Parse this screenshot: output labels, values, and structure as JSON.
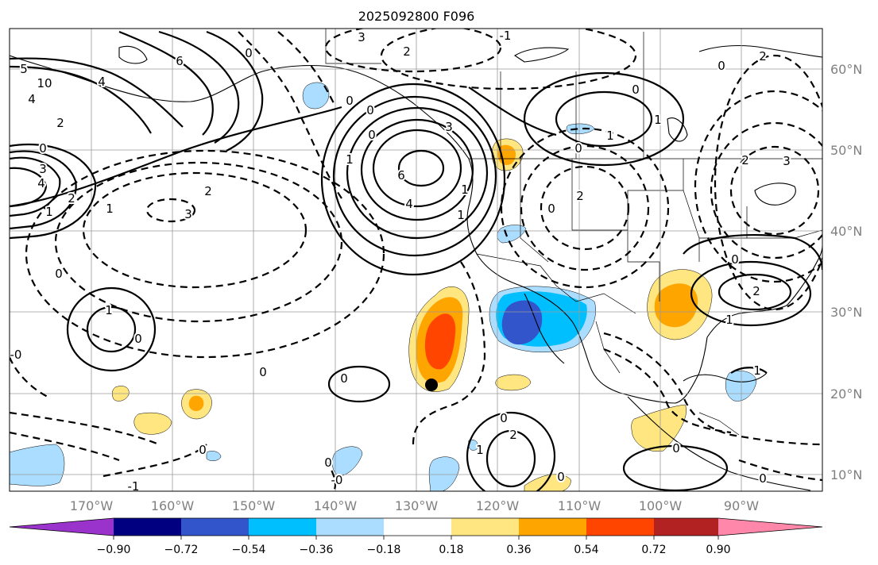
{
  "title": "2025092800 F096",
  "lat_labels": [
    "60°N",
    "50°N",
    "40°N",
    "30°N",
    "20°N",
    "10°N"
  ],
  "lon_labels": [
    "170°W",
    "160°W",
    "150°W",
    "140°W",
    "130°W",
    "120°W",
    "110°W",
    "100°W",
    "90°W"
  ],
  "colorbar": {
    "tick_labels": [
      "−0.90",
      "−0.72",
      "−0.54",
      "−0.36",
      "−0.18",
      "0.18",
      "0.36",
      "0.54",
      "0.72",
      "0.90"
    ],
    "colors": [
      "#9933cc",
      "#000080",
      "#3355cc",
      "#00bfff",
      "#aaddff",
      "#ffffff",
      "#ffe680",
      "#ffa500",
      "#ff4500",
      "#b22222",
      "#ff88aa"
    ]
  },
  "contour_labels": [
    {
      "text": "3"
    },
    {
      "text": "-1"
    },
    {
      "text": "2"
    },
    {
      "text": "6"
    },
    {
      "text": "0"
    },
    {
      "text": "4"
    },
    {
      "text": "5"
    },
    {
      "text": "10"
    },
    {
      "text": "4"
    },
    {
      "text": "2"
    },
    {
      "text": "0"
    },
    {
      "text": "3"
    },
    {
      "text": "4"
    },
    {
      "text": "2"
    },
    {
      "text": "1"
    },
    {
      "text": "3"
    },
    {
      "text": "2"
    },
    {
      "text": "1"
    },
    {
      "text": "0"
    },
    {
      "text": "0"
    },
    {
      "text": "1"
    },
    {
      "text": "3"
    },
    {
      "text": "6"
    },
    {
      "text": "4"
    },
    {
      "text": "1"
    },
    {
      "text": "0"
    },
    {
      "text": "1"
    },
    {
      "text": "2"
    },
    {
      "text": "0"
    },
    {
      "text": "1"
    },
    {
      "text": "0"
    },
    {
      "text": "0"
    },
    {
      "text": "1"
    },
    {
      "text": "0"
    },
    {
      "text": "-0"
    },
    {
      "text": "0"
    },
    {
      "text": "1"
    },
    {
      "text": "0"
    },
    {
      "text": "0"
    },
    {
      "text": "2"
    },
    {
      "text": "0"
    },
    {
      "text": "0"
    },
    {
      "text": "2"
    },
    {
      "text": "1"
    },
    {
      "text": "0"
    },
    {
      "text": "0"
    },
    {
      "text": "-1"
    },
    {
      "text": "0"
    },
    {
      "text": "-0"
    },
    {
      "text": "0"
    },
    {
      "text": "2"
    },
    {
      "text": "2"
    },
    {
      "text": "3"
    },
    {
      "text": "0"
    },
    {
      "text": "1"
    },
    {
      "text": "1"
    },
    {
      "text": "0"
    }
  ],
  "marker": {
    "label": "forecast point",
    "lat_deg_n": 21,
    "lon_deg_w": 128
  }
}
